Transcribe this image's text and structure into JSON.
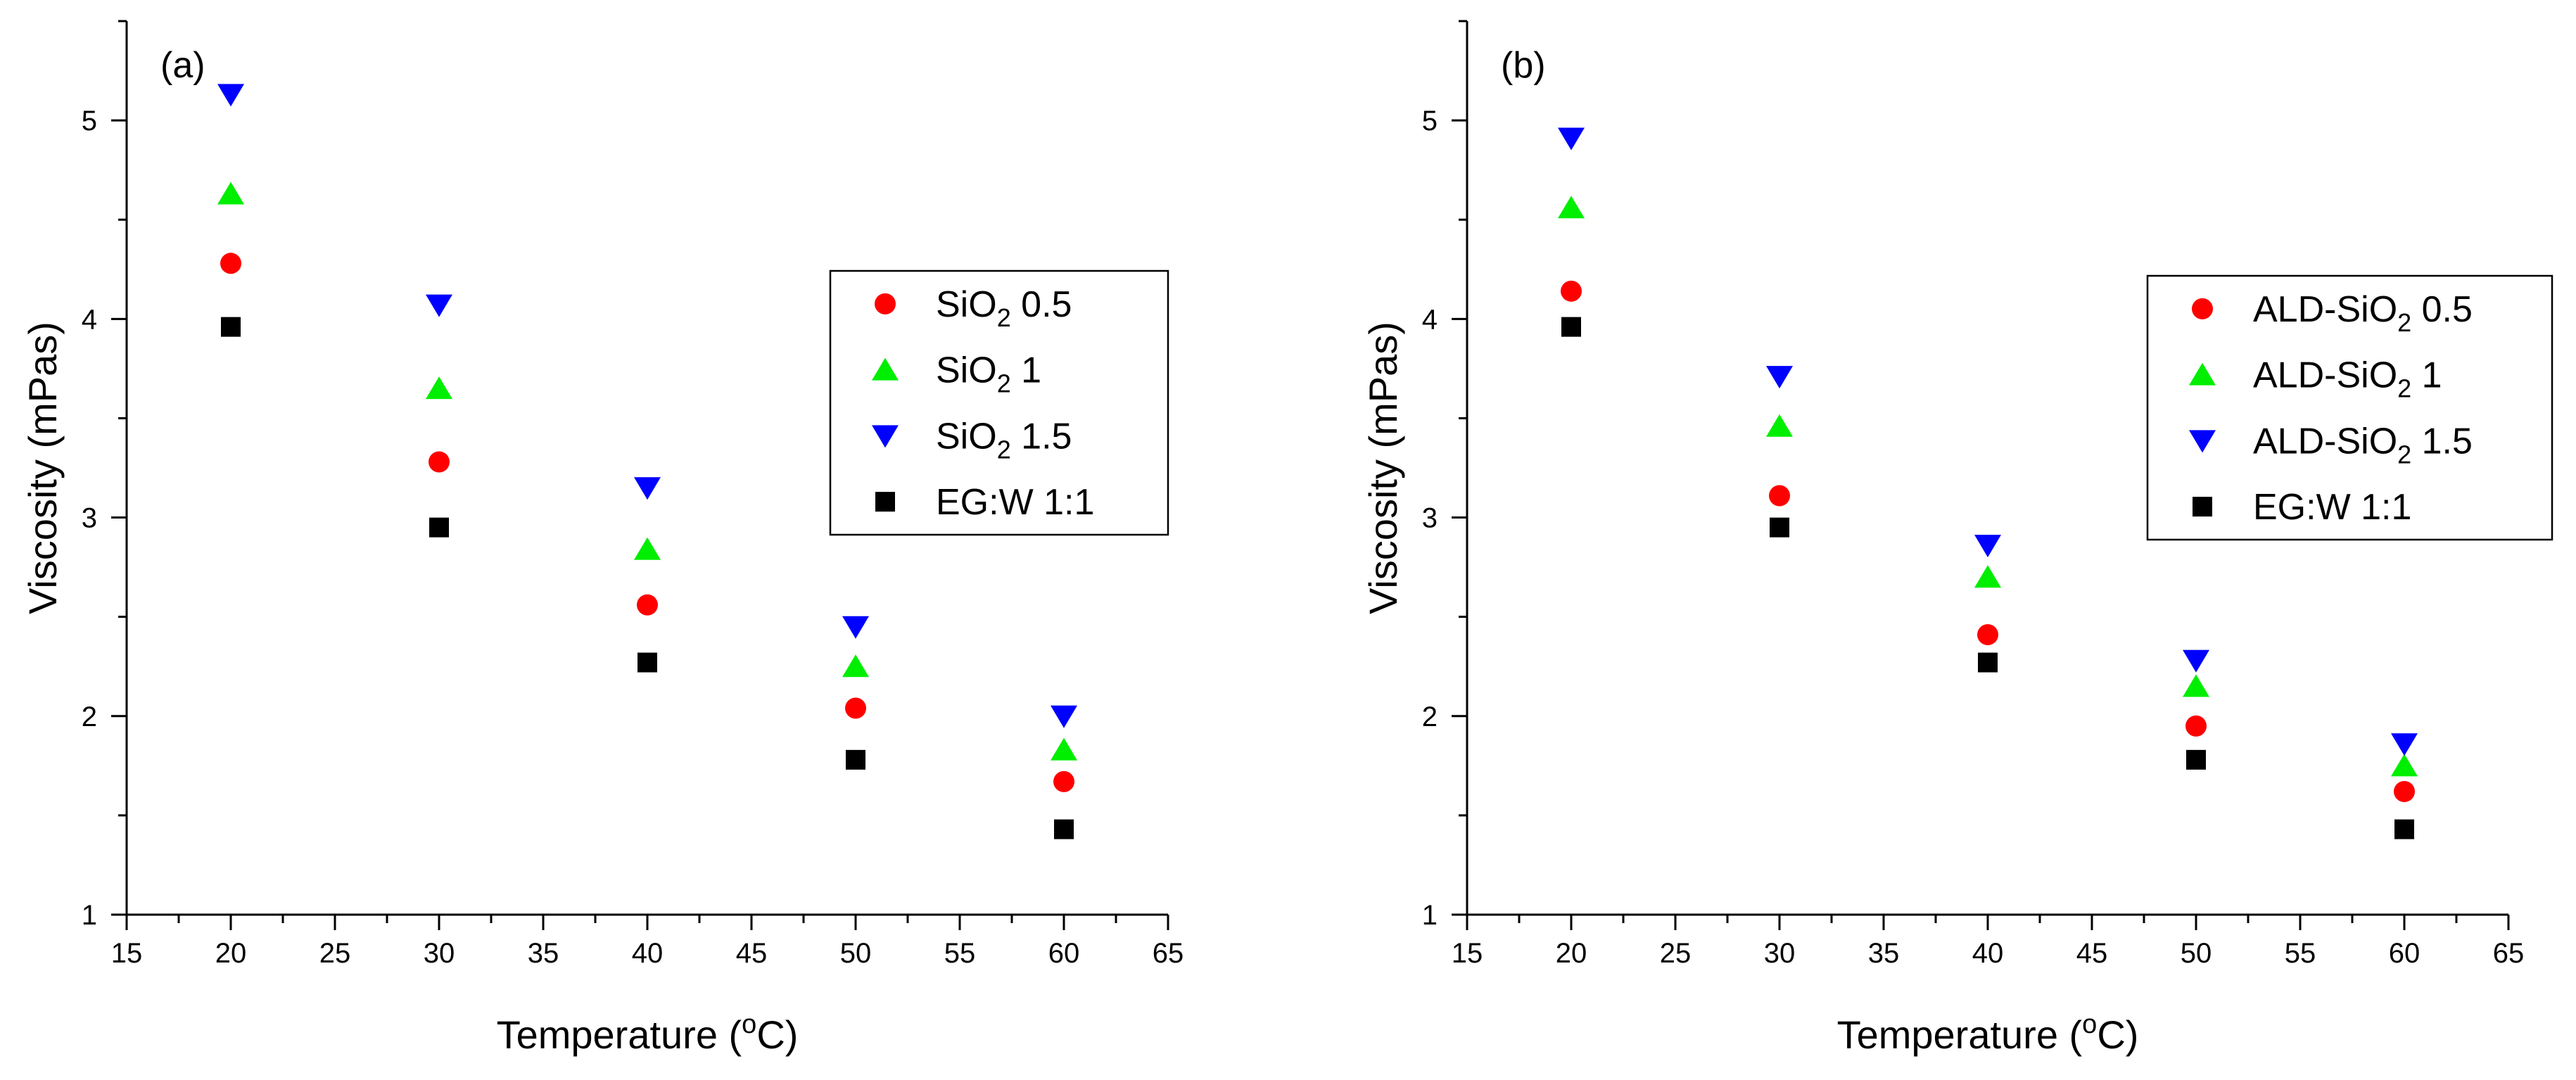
{
  "colors": {
    "red": "#ff0000",
    "green": "#00ee00",
    "blue": "#0000ff",
    "black": "#000000"
  },
  "chart_data": [
    {
      "type": "scatter",
      "panel_label": "(a)",
      "xlabel": "Temperature (",
      "xlabel_sup": "o",
      "xlabel_tail": "C)",
      "ylabel": "Viscosity (mPas)",
      "xlim": [
        15,
        65
      ],
      "ylim": [
        1,
        5.5
      ],
      "xticks": [
        15,
        20,
        25,
        30,
        35,
        40,
        45,
        50,
        55,
        60,
        65
      ],
      "yticks": [
        1,
        2,
        3,
        4,
        5
      ],
      "legend_position": "center-right",
      "x": [
        20,
        30,
        40,
        50,
        60
      ],
      "series": [
        {
          "name": "SiO2 0.5",
          "label_main": "SiO",
          "label_sub": "2",
          "label_tail": " 0.5",
          "marker": "circle",
          "color": "#ff0000",
          "values": [
            4.28,
            3.28,
            2.56,
            2.04,
            1.67
          ]
        },
        {
          "name": "SiO2 1",
          "label_main": "SiO",
          "label_sub": "2",
          "label_tail": " 1",
          "marker": "triangle-up",
          "color": "#00ee00",
          "values": [
            4.63,
            3.65,
            2.84,
            2.25,
            1.83
          ]
        },
        {
          "name": "SiO2 1.5",
          "label_main": "SiO",
          "label_sub": "2",
          "label_tail": " 1.5",
          "marker": "triangle-down",
          "color": "#0000ff",
          "values": [
            5.13,
            4.07,
            3.15,
            2.45,
            2.0
          ]
        },
        {
          "name": "EG:W 1:1",
          "label_main": "EG:W 1:1",
          "label_sub": "",
          "label_tail": "",
          "marker": "square",
          "color": "#000000",
          "values": [
            3.96,
            2.95,
            2.27,
            1.78,
            1.43
          ]
        }
      ]
    },
    {
      "type": "scatter",
      "panel_label": "(b)",
      "xlabel": "Temperature (",
      "xlabel_sup": "o",
      "xlabel_tail": "C)",
      "ylabel": "Viscosity (mPas)",
      "xlim": [
        15,
        65
      ],
      "ylim": [
        1,
        5.5
      ],
      "xticks": [
        15,
        20,
        25,
        30,
        35,
        40,
        45,
        50,
        55,
        60,
        65
      ],
      "yticks": [
        1,
        2,
        3,
        4,
        5
      ],
      "legend_position": "center-right",
      "x": [
        20,
        30,
        40,
        50,
        60
      ],
      "series": [
        {
          "name": "ALD-SiO2 0.5",
          "label_main": "ALD-SiO",
          "label_sub": "2",
          "label_tail": " 0.5",
          "marker": "circle",
          "color": "#ff0000",
          "values": [
            4.14,
            3.11,
            2.41,
            1.95,
            1.62
          ]
        },
        {
          "name": "ALD-SiO2 1",
          "label_main": "ALD-SiO",
          "label_sub": "2",
          "label_tail": " 1",
          "marker": "triangle-up",
          "color": "#00ee00",
          "values": [
            4.56,
            3.46,
            2.7,
            2.15,
            1.75
          ]
        },
        {
          "name": "ALD-SiO2 1.5",
          "label_main": "ALD-SiO",
          "label_sub": "2",
          "label_tail": " 1.5",
          "marker": "triangle-down",
          "color": "#0000ff",
          "values": [
            4.91,
            3.71,
            2.86,
            2.28,
            1.86
          ]
        },
        {
          "name": "EG:W 1:1",
          "label_main": "EG:W 1:1",
          "label_sub": "",
          "label_tail": "",
          "marker": "square",
          "color": "#000000",
          "values": [
            3.96,
            2.95,
            2.27,
            1.78,
            1.43
          ]
        }
      ]
    }
  ]
}
